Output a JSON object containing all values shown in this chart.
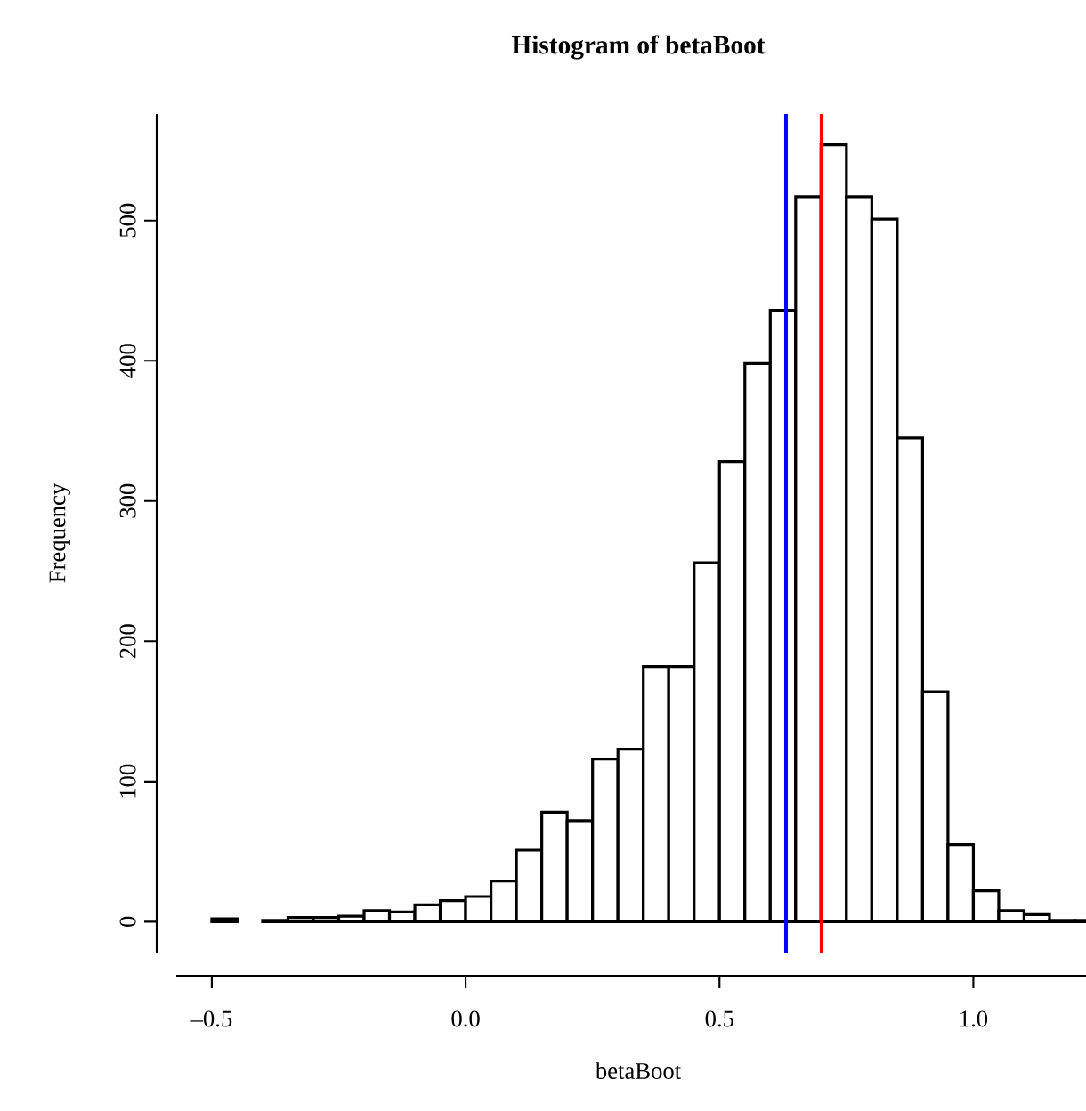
{
  "chart_data": {
    "type": "histogram",
    "title": "Histogram of betaBoot",
    "xlabel": "betaBoot",
    "ylabel": "Frequency",
    "bins": [
      -0.5,
      -0.45,
      -0.4,
      -0.35,
      -0.3,
      -0.25,
      -0.2,
      -0.15,
      -0.1,
      -0.05,
      0.0,
      0.05,
      0.1,
      0.15,
      0.2,
      0.25,
      0.3,
      0.35,
      0.4,
      0.45,
      0.5,
      0.55,
      0.6,
      0.65,
      0.7,
      0.75,
      0.8,
      0.85,
      0.9,
      0.95,
      1.0,
      1.05,
      1.1,
      1.15,
      1.2,
      1.25
    ],
    "values": [
      2,
      0,
      1,
      3,
      3,
      4,
      8,
      7,
      12,
      15,
      18,
      29,
      51,
      78,
      72,
      116,
      123,
      182,
      182,
      256,
      328,
      398,
      436,
      517,
      554,
      517,
      501,
      345,
      164,
      55,
      22,
      8,
      5,
      1,
      1
    ],
    "color": "#000000",
    "xlim": [
      -0.57,
      1.25
    ],
    "xticks": [
      {
        "value": -0.5,
        "label": "–0.5"
      },
      {
        "value": 0.0,
        "label": "0.0"
      },
      {
        "value": 0.5,
        "label": "0.5"
      },
      {
        "value": 1.0,
        "label": "1.0"
      }
    ],
    "ylim": [
      -22,
      576
    ],
    "yticks": [
      0,
      100,
      200,
      300,
      400,
      500
    ],
    "ref_lines": [
      {
        "axis": "x",
        "value": 0.631,
        "color": "#0000ff"
      },
      {
        "axis": "x",
        "value": 0.701,
        "color": "#ff0000"
      }
    ]
  }
}
